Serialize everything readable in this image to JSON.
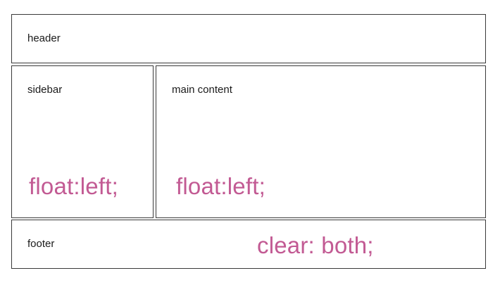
{
  "layout": {
    "header": {
      "label": "header"
    },
    "sidebar": {
      "label": "sidebar",
      "css": "float:left;"
    },
    "main": {
      "label": "main content",
      "css": "float:left;"
    },
    "footer": {
      "label": "footer",
      "css": "clear: both;"
    }
  },
  "colors": {
    "code_text": "#c25a93",
    "border": "#3a3a3a"
  }
}
